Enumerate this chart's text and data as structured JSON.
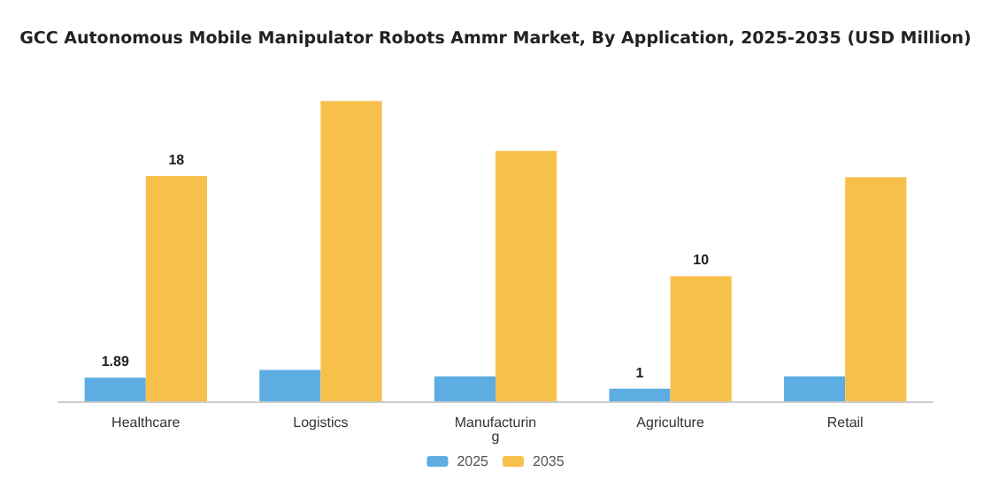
{
  "chart_data": {
    "type": "bar",
    "title": "GCC Autonomous Mobile Manipulator Robots Ammr Market, By Application, 2025-2035 (USD Million)",
    "categories": [
      "Healthcare",
      "Logistics",
      "Manufacturing",
      "Agriculture",
      "Retail"
    ],
    "series": [
      {
        "name": "2025",
        "color": "#5dade2",
        "values": [
          1.89,
          2.5,
          2.0,
          1,
          2.0
        ],
        "value_labels": [
          "1.89",
          null,
          null,
          "1",
          null
        ]
      },
      {
        "name": "2035",
        "color": "#f7c04a",
        "values": [
          18,
          24,
          20,
          10,
          17.9
        ],
        "value_labels": [
          "18",
          null,
          null,
          "10",
          null
        ]
      }
    ],
    "legend": "bottom"
  }
}
